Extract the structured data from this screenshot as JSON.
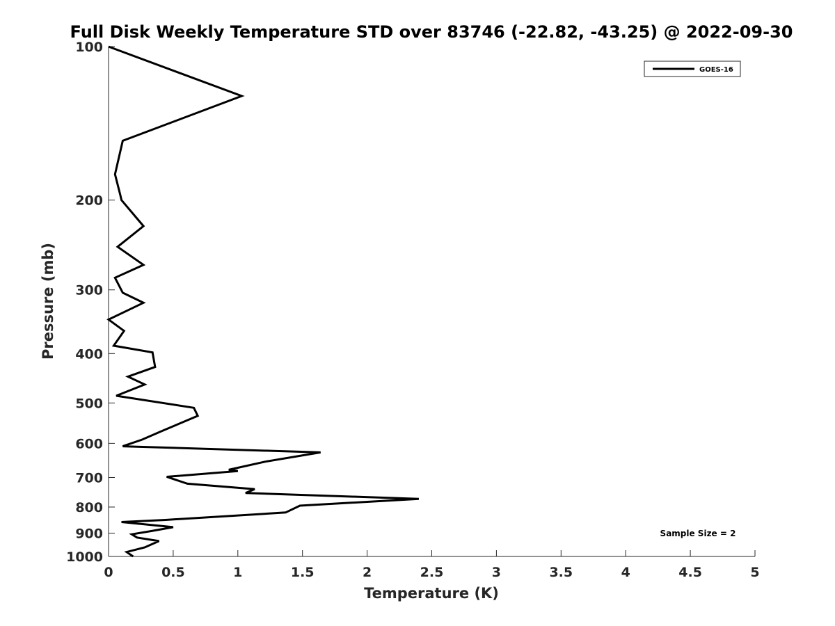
{
  "chart_data": {
    "type": "line",
    "title": "Full Disk Weekly Temperature STD over 83746 (-22.82, -43.25) @ 2022-09-30",
    "xlabel": "Temperature (K)",
    "ylabel": "Pressure (mb)",
    "xlim": [
      0,
      5
    ],
    "ylim": [
      100,
      1000
    ],
    "y_scale": "log",
    "y_reversed": true,
    "grid": false,
    "legend_position": "top-right",
    "x_ticks": [
      "0",
      "0.5",
      "1",
      "1.5",
      "2",
      "2.5",
      "3",
      "3.5",
      "4",
      "4.5",
      "5"
    ],
    "y_ticks": [
      "100",
      "200",
      "300",
      "400",
      "500",
      "600",
      "700",
      "800",
      "900",
      "1000"
    ],
    "series": [
      {
        "name": "GOES-16",
        "color": "#000000",
        "points": [
          [
            0.0,
            100
          ],
          [
            1.03,
            125
          ],
          [
            0.11,
            153
          ],
          [
            0.05,
            178
          ],
          [
            0.09,
            195
          ],
          [
            0.1,
            200
          ],
          [
            0.27,
            225
          ],
          [
            0.07,
            247
          ],
          [
            0.27,
            268
          ],
          [
            0.05,
            284
          ],
          [
            0.11,
            304
          ],
          [
            0.27,
            318
          ],
          [
            0.0,
            343
          ],
          [
            0.12,
            361
          ],
          [
            0.04,
            386
          ],
          [
            0.34,
            398
          ],
          [
            0.36,
            425
          ],
          [
            0.15,
            444
          ],
          [
            0.28,
            460
          ],
          [
            0.06,
            484
          ],
          [
            0.66,
            511
          ],
          [
            0.69,
            530
          ],
          [
            0.41,
            568
          ],
          [
            0.26,
            590
          ],
          [
            0.11,
            608
          ],
          [
            1.64,
            625
          ],
          [
            1.21,
            652
          ],
          [
            0.93,
            676
          ],
          [
            1.0,
            680
          ],
          [
            0.45,
            698
          ],
          [
            0.61,
            720
          ],
          [
            1.13,
            738
          ],
          [
            1.06,
            751
          ],
          [
            2.4,
            771
          ],
          [
            1.48,
            795
          ],
          [
            1.37,
            820
          ],
          [
            0.44,
            848
          ],
          [
            0.1,
            856
          ],
          [
            0.5,
            876
          ],
          [
            0.35,
            890
          ],
          [
            0.18,
            905
          ],
          [
            0.22,
            918
          ],
          [
            0.39,
            933
          ],
          [
            0.28,
            960
          ],
          [
            0.14,
            980
          ],
          [
            0.19,
            1000
          ]
        ]
      }
    ],
    "annotation": "Sample Size = 2"
  }
}
